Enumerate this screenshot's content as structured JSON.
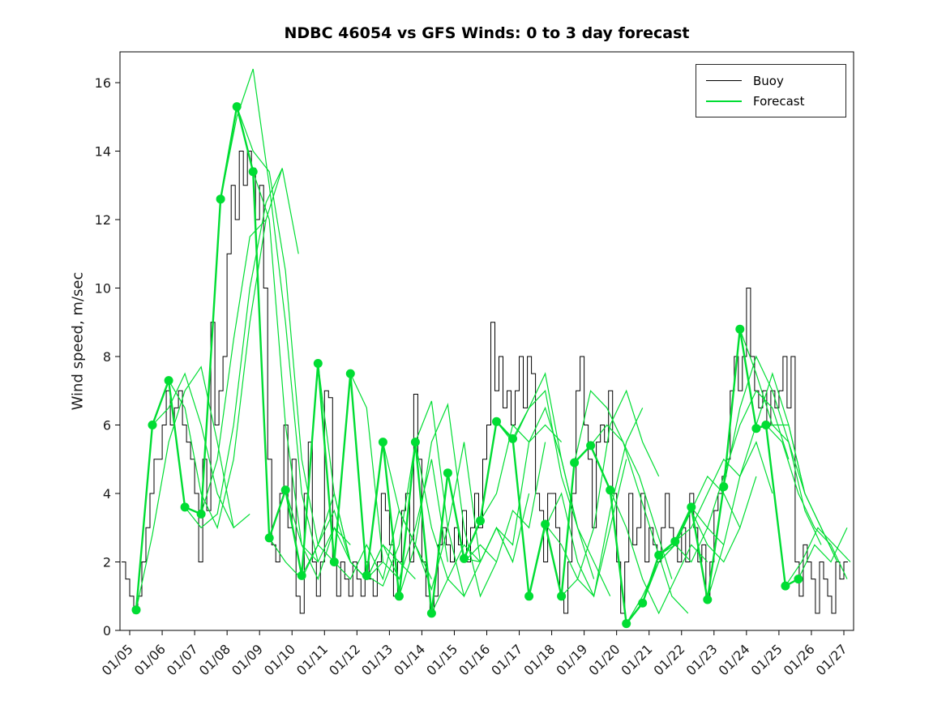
{
  "title": "NDBC 46054 vs GFS Winds: 0 to 3 day forecast",
  "ylabel": "Wind speed, m/sec",
  "legend": {
    "buoy_label": "Buoy",
    "forecast_label": "Forecast"
  },
  "colors": {
    "buoy": "#000000",
    "forecast": "#00DD33",
    "axis": "#000000",
    "background": "#ffffff"
  },
  "chart_data": {
    "type": "line",
    "title": "NDBC 46054 vs GFS Winds: 0 to 3 day forecast",
    "xlabel": "",
    "ylabel": "Wind speed, m/sec",
    "xlim": [
      4.7,
      27.3
    ],
    "ylim": [
      0,
      16.9
    ],
    "grid": false,
    "legend_position": "top-right",
    "x_tick_labels": [
      "01/05",
      "01/06",
      "01/07",
      "01/08",
      "01/09",
      "01/10",
      "01/11",
      "01/12",
      "01/13",
      "01/14",
      "01/15",
      "01/16",
      "01/17",
      "01/18",
      "01/19",
      "01/20",
      "01/21",
      "01/22",
      "01/23",
      "01/24",
      "01/25",
      "01/26",
      "01/27"
    ],
    "x_tick_values": [
      5,
      6,
      7,
      8,
      9,
      10,
      11,
      12,
      13,
      14,
      15,
      16,
      17,
      18,
      19,
      20,
      21,
      22,
      23,
      24,
      25,
      26,
      27
    ],
    "y_ticks": [
      0,
      2,
      4,
      6,
      8,
      10,
      12,
      14,
      16
    ],
    "series": [
      {
        "name": "Buoy",
        "style": "step",
        "color": "#000000",
        "line_width": 1,
        "x0": 4.75,
        "dx": 0.125,
        "y": [
          2.0,
          1.5,
          1.0,
          0.5,
          1.0,
          2.0,
          3.0,
          4.0,
          5.0,
          5.0,
          6.0,
          7.0,
          6.0,
          6.5,
          7.0,
          6.0,
          5.5,
          5.0,
          4.0,
          2.0,
          5.0,
          3.5,
          9.0,
          6.0,
          7.0,
          8.0,
          11.0,
          13.0,
          12.0,
          14.0,
          13.0,
          14.0,
          13.5,
          12.0,
          13.0,
          10.0,
          5.0,
          2.5,
          2.0,
          4.0,
          6.0,
          3.0,
          5.0,
          1.0,
          0.5,
          4.0,
          5.5,
          2.0,
          1.0,
          2.0,
          7.0,
          6.8,
          2.0,
          1.0,
          2.0,
          1.5,
          1.0,
          2.0,
          1.5,
          1.0,
          2.0,
          1.5,
          1.0,
          2.0,
          4.0,
          3.5,
          2.5,
          1.0,
          2.0,
          3.5,
          4.0,
          2.0,
          6.9,
          5.0,
          2.0,
          1.0,
          0.5,
          1.0,
          2.5,
          3.0,
          2.5,
          2.0,
          3.0,
          2.5,
          3.5,
          2.0,
          3.0,
          4.0,
          3.0,
          5.0,
          6.0,
          9.0,
          7.0,
          8.0,
          6.5,
          7.0,
          6.0,
          7.0,
          8.0,
          6.5,
          8.0,
          7.5,
          4.0,
          3.5,
          2.0,
          4.0,
          4.0,
          3.0,
          1.0,
          0.5,
          2.0,
          4.0,
          7.0,
          8.0,
          6.0,
          5.0,
          3.0,
          5.5,
          6.0,
          5.5,
          7.0,
          4.0,
          2.0,
          0.5,
          2.0,
          4.0,
          2.5,
          3.0,
          4.0,
          2.0,
          3.0,
          2.5,
          2.0,
          3.0,
          4.0,
          3.0,
          2.5,
          2.0,
          3.0,
          2.0,
          4.0,
          3.0,
          2.0,
          2.5,
          1.0,
          2.0,
          3.5,
          4.0,
          4.5,
          5.0,
          7.0,
          8.0,
          7.0,
          8.0,
          10.0,
          8.0,
          7.0,
          6.5,
          7.0,
          6.0,
          7.0,
          6.5,
          7.0,
          8.0,
          6.5,
          8.0,
          2.0,
          1.0,
          2.5,
          2.0,
          1.5,
          0.5,
          2.0,
          1.5,
          1.0,
          0.5,
          2.0,
          1.5,
          2.0,
          2.0
        ]
      }
    ],
    "forecast": {
      "name": "Forecast",
      "color": "#00DD33",
      "line_width": 1.2,
      "marker": "filled-circle",
      "marker_radius": 5.5,
      "dx": 0.5,
      "runs": [
        {
          "x0": 5.2,
          "y": [
            0.6,
            2.8,
            5.5,
            7.0,
            7.7,
            5.5,
            3.0
          ]
        },
        {
          "x0": 5.7,
          "y": [
            6.0,
            6.5,
            7.5,
            6.0,
            4.0,
            3.0,
            3.4
          ]
        },
        {
          "x0": 6.2,
          "y": [
            7.3,
            6.5,
            4.0,
            3.0,
            5.0,
            9.0,
            12.0
          ]
        },
        {
          "x0": 6.7,
          "y": [
            3.6,
            3.0,
            3.4,
            6.0,
            10.0,
            12.5,
            13.5
          ]
        },
        {
          "x0": 7.2,
          "y": [
            3.4,
            5.0,
            8.5,
            11.5,
            12.0,
            13.5,
            11.0
          ]
        },
        {
          "x0": 7.8,
          "y": [
            12.6,
            15.0,
            16.4,
            13.0,
            9.0,
            4.0,
            2.0
          ]
        },
        {
          "x0": 8.3,
          "y": [
            15.3,
            14.0,
            13.4,
            10.5,
            5.0,
            2.5,
            2.0
          ]
        },
        {
          "x0": 8.8,
          "y": [
            13.4,
            12.0,
            6.0,
            2.5,
            2.0,
            3.0,
            2.5
          ]
        },
        {
          "x0": 9.3,
          "y": [
            2.7,
            2.0,
            1.5,
            2.5,
            3.5,
            2.0,
            1.5
          ]
        },
        {
          "x0": 9.8,
          "y": [
            4.1,
            2.5,
            1.5,
            3.0,
            2.0,
            1.5,
            2.0
          ]
        },
        {
          "x0": 10.3,
          "y": [
            1.6,
            2.5,
            4.0,
            2.0,
            1.5,
            2.5,
            1.5
          ]
        },
        {
          "x0": 10.8,
          "y": [
            7.8,
            4.0,
            2.0,
            1.5,
            2.5,
            2.0,
            1.5
          ]
        },
        {
          "x0": 11.3,
          "y": [
            2.0,
            1.5,
            2.5,
            1.5,
            3.5,
            2.5,
            1.5
          ]
        },
        {
          "x0": 11.8,
          "y": [
            7.5,
            6.5,
            2.0,
            1.5,
            3.0,
            5.0,
            2.0
          ]
        },
        {
          "x0": 12.3,
          "y": [
            1.6,
            1.3,
            2.5,
            5.5,
            3.0,
            1.5,
            1.0
          ]
        },
        {
          "x0": 12.8,
          "y": [
            5.5,
            3.5,
            2.5,
            1.2,
            3.0,
            5.5,
            2.0
          ]
        },
        {
          "x0": 13.3,
          "y": [
            1.0,
            2.5,
            5.5,
            6.6,
            3.0,
            1.0,
            2.0
          ]
        },
        {
          "x0": 13.8,
          "y": [
            5.5,
            6.7,
            3.0,
            1.0,
            2.0,
            3.0,
            2.0
          ]
        },
        {
          "x0": 14.3,
          "y": [
            0.5,
            1.5,
            2.5,
            2.0,
            3.0,
            2.0,
            4.0
          ]
        },
        {
          "x0": 14.8,
          "y": [
            4.6,
            2.0,
            2.5,
            2.0,
            3.5,
            3.0,
            5.5
          ]
        },
        {
          "x0": 15.3,
          "y": [
            2.1,
            2.0,
            3.0,
            2.5,
            5.5,
            6.0,
            5.5
          ]
        },
        {
          "x0": 15.8,
          "y": [
            3.2,
            4.0,
            6.0,
            5.5,
            6.5,
            5.0,
            3.0
          ]
        },
        {
          "x0": 16.3,
          "y": [
            6.1,
            5.5,
            6.5,
            7.5,
            5.0,
            3.0,
            1.5
          ]
        },
        {
          "x0": 16.8,
          "y": [
            5.6,
            6.5,
            7.0,
            4.5,
            3.0,
            2.0,
            1.0
          ]
        },
        {
          "x0": 17.3,
          "y": [
            1.0,
            3.0,
            4.0,
            2.0,
            1.0,
            3.0,
            5.0
          ]
        },
        {
          "x0": 17.8,
          "y": [
            3.1,
            2.5,
            1.5,
            1.0,
            3.5,
            5.5,
            6.5
          ]
        },
        {
          "x0": 18.3,
          "y": [
            1.0,
            1.5,
            3.0,
            6.0,
            7.0,
            5.5,
            4.5
          ]
        },
        {
          "x0": 18.7,
          "y": [
            4.9,
            7.0,
            6.5,
            5.5,
            4.5,
            3.0,
            1.5
          ]
        },
        {
          "x0": 19.2,
          "y": [
            5.4,
            6.0,
            5.5,
            4.0,
            2.5,
            1.0,
            0.5
          ]
        },
        {
          "x0": 19.8,
          "y": [
            4.1,
            3.0,
            1.5,
            0.5,
            1.5,
            2.5,
            2.0
          ]
        },
        {
          "x0": 20.3,
          "y": [
            0.2,
            1.0,
            2.0,
            2.5,
            2.0,
            3.0,
            2.5
          ]
        },
        {
          "x0": 20.8,
          "y": [
            0.8,
            2.0,
            2.5,
            3.5,
            2.5,
            2.0,
            3.0
          ]
        },
        {
          "x0": 21.3,
          "y": [
            2.2,
            2.5,
            3.5,
            4.5,
            4.0,
            3.0,
            4.5
          ]
        },
        {
          "x0": 21.8,
          "y": [
            2.6,
            3.0,
            4.0,
            5.0,
            4.5,
            5.5,
            4.0
          ]
        },
        {
          "x0": 22.3,
          "y": [
            3.6,
            3.0,
            4.5,
            6.0,
            7.0,
            6.5,
            5.0
          ]
        },
        {
          "x0": 22.8,
          "y": [
            0.9,
            2.5,
            4.5,
            6.0,
            7.5,
            6.0,
            4.0
          ]
        },
        {
          "x0": 23.3,
          "y": [
            4.2,
            6.5,
            8.0,
            7.0,
            5.5,
            3.5,
            2.5
          ]
        },
        {
          "x0": 23.8,
          "y": [
            8.8,
            7.5,
            6.0,
            6.0,
            4.0,
            3.0,
            2.0
          ]
        },
        {
          "x0": 24.3,
          "y": [
            5.9,
            6.0,
            5.5,
            4.0,
            3.0,
            2.0,
            1.5
          ]
        },
        {
          "x0": 24.6,
          "y": [
            6.0,
            5.5,
            4.0,
            3.0,
            2.5,
            1.5,
            2.5
          ]
        },
        {
          "x0": 25.2,
          "y": [
            1.3,
            2.0,
            3.0,
            2.5,
            2.0,
            1.5,
            2.0
          ]
        },
        {
          "x0": 25.6,
          "y": [
            1.5,
            2.5,
            2.0,
            3.0,
            2.0,
            1.5,
            1.8
          ]
        }
      ]
    }
  }
}
